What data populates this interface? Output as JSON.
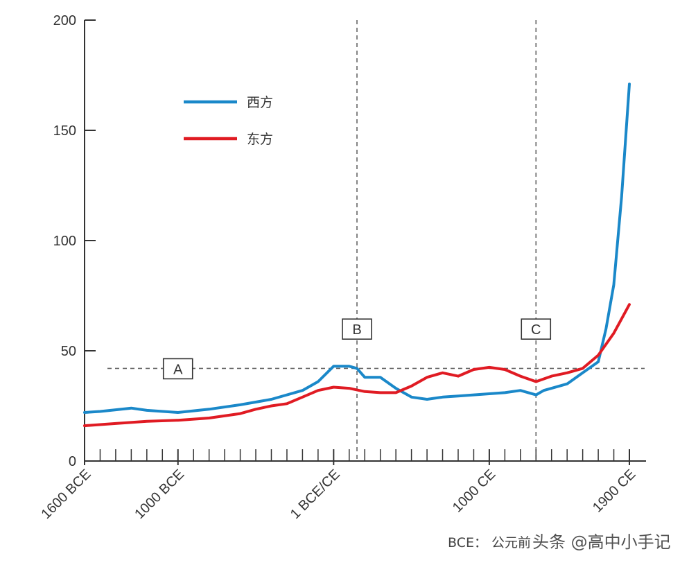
{
  "chart_data": {
    "type": "line",
    "title": "",
    "xlabel": "",
    "ylabel": "",
    "ylim": [
      0,
      200
    ],
    "xlim": [
      -1600,
      1900
    ],
    "x_axis_note": "x values are years; negative = BCE, positive = CE",
    "yticks": [
      "0",
      "50",
      "100",
      "150",
      "200"
    ],
    "xtick_values": [
      -1600,
      -1000,
      0,
      1000,
      1900
    ],
    "xtick_labels": [
      "1600 BCE",
      "1000 BCE",
      "1 BCE/CE",
      "1000 CE",
      "1900 CE"
    ],
    "minor_tick_step": 100,
    "legend": {
      "placement": "top-left"
    },
    "series": [
      {
        "name": "西方",
        "color": "#1a88c9",
        "x": [
          -1600,
          -1500,
          -1300,
          -1200,
          -1000,
          -800,
          -600,
          -400,
          -200,
          -100,
          0,
          100,
          150,
          200,
          300,
          400,
          500,
          600,
          700,
          800,
          900,
          1000,
          1100,
          1200,
          1300,
          1350,
          1400,
          1500,
          1600,
          1700,
          1750,
          1800,
          1850,
          1900
        ],
        "values": [
          22,
          22.5,
          24,
          23,
          22,
          23.5,
          25.5,
          28,
          32,
          36,
          43,
          43,
          42,
          38,
          38,
          33,
          29,
          28,
          29,
          29.5,
          30,
          30.5,
          31,
          32,
          30,
          32,
          33,
          35,
          40,
          45,
          60,
          80,
          120,
          171
        ]
      },
      {
        "name": "东方",
        "color": "#e01b23",
        "x": [
          -1600,
          -1400,
          -1200,
          -1000,
          -800,
          -600,
          -500,
          -400,
          -300,
          -200,
          -100,
          0,
          100,
          200,
          300,
          400,
          500,
          600,
          700,
          800,
          900,
          1000,
          1100,
          1200,
          1300,
          1400,
          1500,
          1600,
          1700,
          1800,
          1900
        ],
        "values": [
          16,
          17,
          18,
          18.5,
          19.5,
          21.5,
          23.5,
          25,
          26,
          29,
          32,
          33.5,
          33,
          31.5,
          31,
          31,
          34,
          38,
          40,
          38.5,
          41.5,
          42.5,
          41.5,
          38.5,
          36,
          38.5,
          40,
          42,
          48,
          58,
          71
        ]
      }
    ],
    "reference_lines": [
      {
        "orientation": "horizontal",
        "value": 42
      },
      {
        "orientation": "vertical",
        "value": 150
      },
      {
        "orientation": "vertical",
        "value": 1300
      }
    ],
    "annotations": [
      {
        "label": "A",
        "x": -1000,
        "y": 42
      },
      {
        "label": "B",
        "x": 150,
        "y": 60
      },
      {
        "label": "C",
        "x": 1300,
        "y": 60
      }
    ]
  },
  "footnote": "BCE： 公元前",
  "watermark": "头条 @高中小手记"
}
